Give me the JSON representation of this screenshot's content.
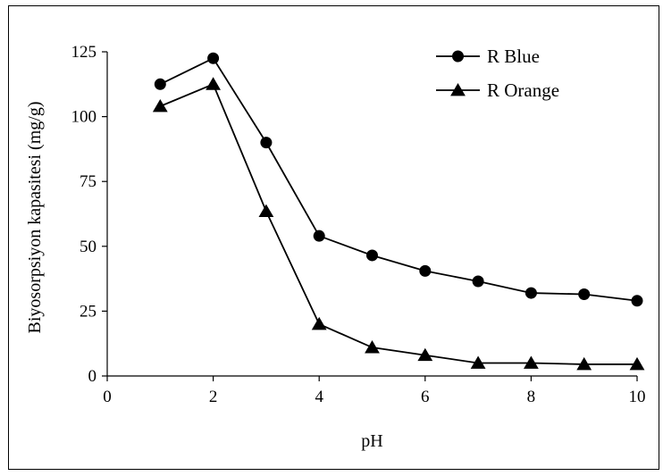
{
  "chart_data": {
    "type": "line",
    "title": "",
    "xlabel": "pH",
    "ylabel": "Biyosorpsiyon kapasitesi (mg/g)",
    "xlim": [
      0,
      10
    ],
    "ylim": [
      0,
      125
    ],
    "xticks": [
      0,
      2,
      4,
      6,
      8,
      10
    ],
    "yticks": [
      0,
      25,
      50,
      75,
      100,
      125
    ],
    "grid": false,
    "legend_position": "top-right",
    "x": [
      1,
      2,
      3,
      4,
      5,
      6,
      7,
      8,
      9,
      10
    ],
    "series": [
      {
        "name": "R Blue",
        "marker": "circle",
        "color": "#000000",
        "values": [
          112.5,
          122.5,
          90,
          54,
          46.5,
          40.5,
          36.5,
          32,
          31.5,
          29
        ]
      },
      {
        "name": "R Orange",
        "marker": "triangle",
        "color": "#000000",
        "values": [
          104,
          112.5,
          63.5,
          20,
          11,
          8,
          5,
          5,
          4.5,
          4.5
        ]
      }
    ]
  }
}
